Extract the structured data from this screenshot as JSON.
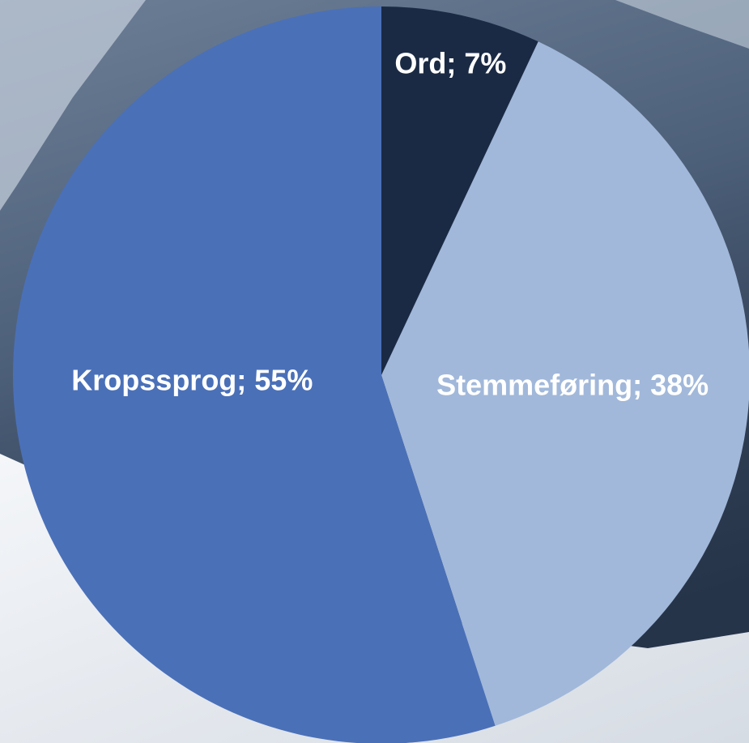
{
  "chart_data": {
    "type": "pie",
    "values": [
      7,
      38,
      55
    ],
    "value_labels": [
      "Ord; 7%",
      "Stemmeføring; 38%",
      "Kropssprog; 55%"
    ],
    "colors": [
      "#1b2a44",
      "#a1b8da",
      "#4a70b8"
    ]
  }
}
